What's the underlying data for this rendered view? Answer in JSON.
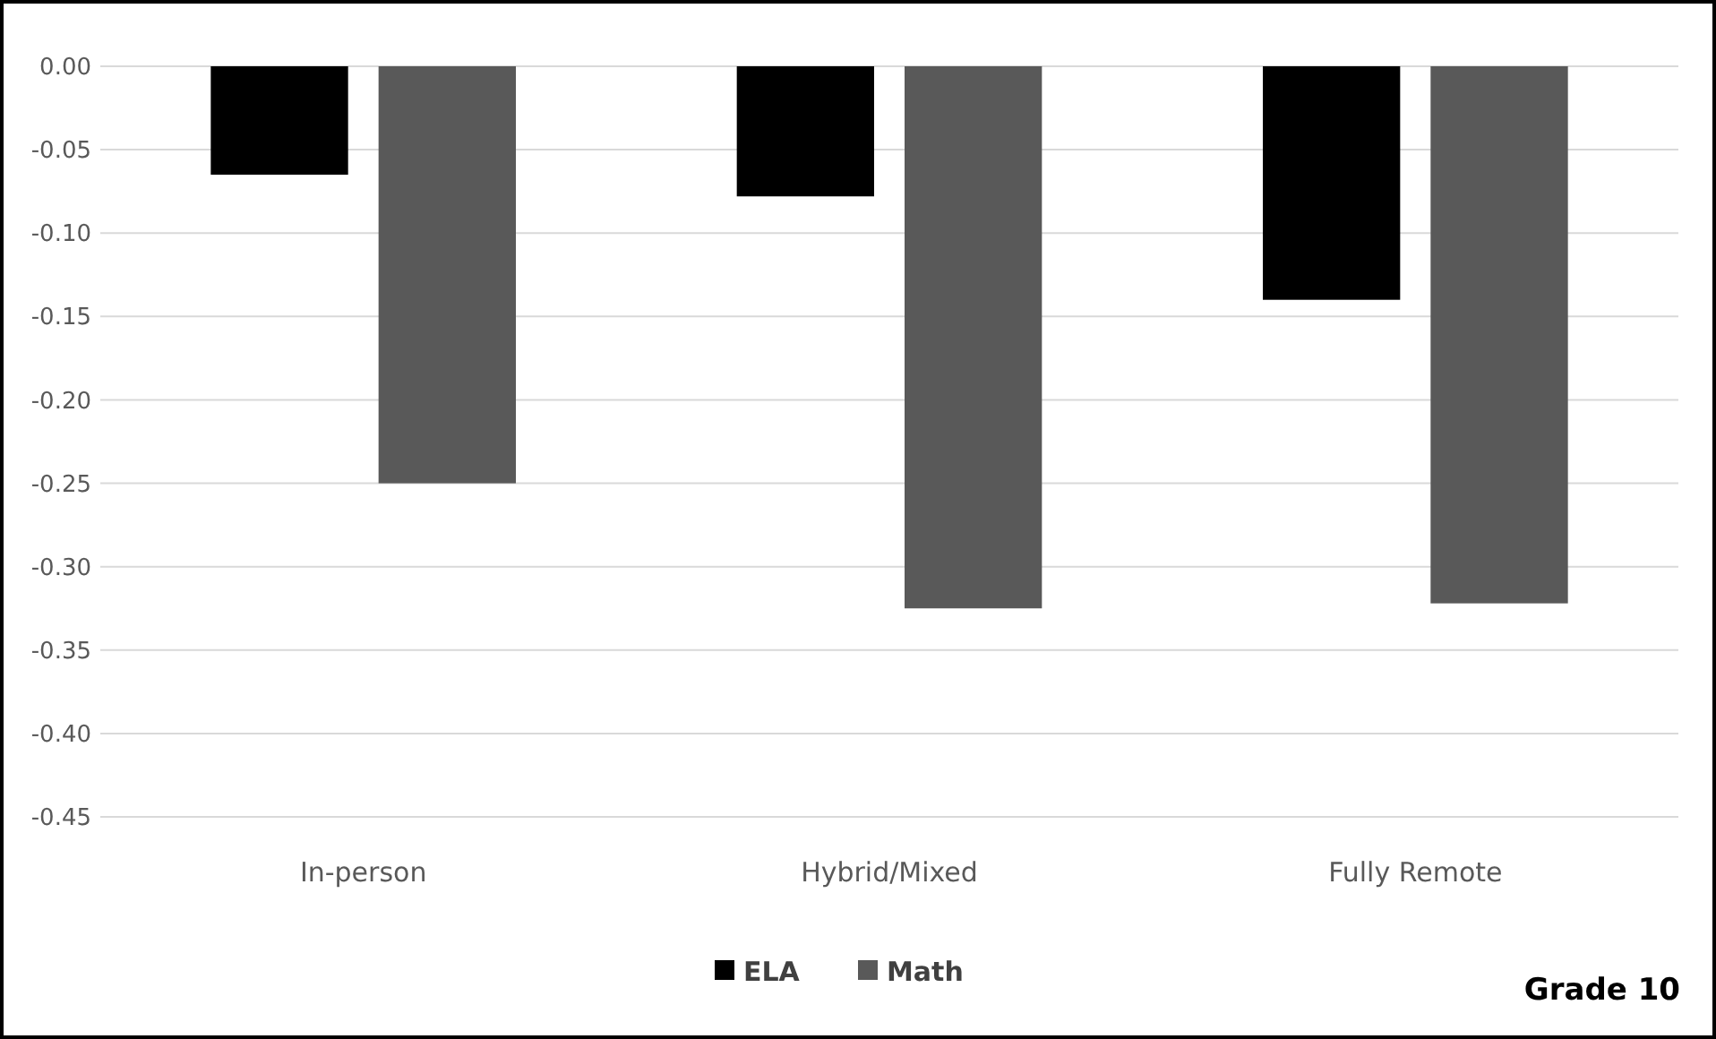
{
  "chart_data": {
    "type": "bar",
    "categories": [
      "In-person",
      "Hybrid/Mixed",
      "Fully Remote"
    ],
    "series": [
      {
        "name": "ELA",
        "color": "#000000",
        "values": [
          -0.065,
          -0.078,
          -0.14
        ]
      },
      {
        "name": "Math",
        "color": "#595959",
        "values": [
          -0.25,
          -0.325,
          -0.322
        ]
      }
    ],
    "ylim": [
      -0.45,
      0
    ],
    "yticks": [
      {
        "value": 0,
        "label": "0.00"
      },
      {
        "value": -0.05,
        "label": "-0.05"
      },
      {
        "value": -0.1,
        "label": "-0.10"
      },
      {
        "value": -0.15,
        "label": "-0.15"
      },
      {
        "value": -0.2,
        "label": "-0.20"
      },
      {
        "value": -0.25,
        "label": "-0.25"
      },
      {
        "value": -0.3,
        "label": "-0.30"
      },
      {
        "value": -0.35,
        "label": "-0.35"
      },
      {
        "value": -0.4,
        "label": "-0.40"
      },
      {
        "value": -0.45,
        "label": "-0.45"
      }
    ],
    "grid": "y",
    "legend": "bottom",
    "annotations": [
      "Grade 10"
    ]
  }
}
